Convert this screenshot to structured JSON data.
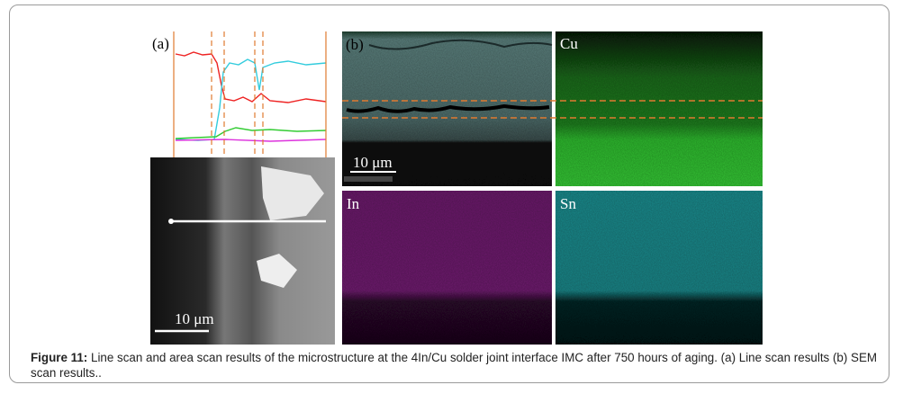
{
  "panels": {
    "a": {
      "label": "(a)",
      "scale_bar": "10 μm"
    },
    "b": {
      "label": "(b)",
      "scale_bar": "10 μm"
    },
    "cu": {
      "label": "Cu"
    },
    "in": {
      "label": "In"
    },
    "sn": {
      "label": "Sn"
    }
  },
  "caption": {
    "label": "Figure 11:",
    "text": "Line scan and area scan results of the microstructure at the 4In/Cu solder joint interface IMC after 750 hours of aging. (a) Line scan results (b) SEM scan results.."
  }
}
